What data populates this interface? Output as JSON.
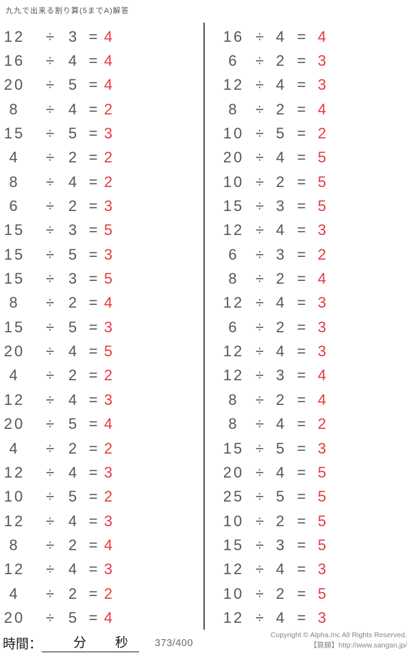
{
  "title": "九九で出来る割り算(5までA)解答",
  "colors": {
    "answer_red": "#e6393f",
    "problem_gray": "#5a5552",
    "divider_gray": "#544f4b",
    "footer_gray": "#898582"
  },
  "operators": {
    "divide": "÷",
    "equals": "="
  },
  "problems": {
    "left": [
      {
        "dividend": 12,
        "divisor": 3,
        "answer": 4
      },
      {
        "dividend": 16,
        "divisor": 4,
        "answer": 4
      },
      {
        "dividend": 20,
        "divisor": 5,
        "answer": 4
      },
      {
        "dividend": 8,
        "divisor": 4,
        "answer": 2
      },
      {
        "dividend": 15,
        "divisor": 5,
        "answer": 3
      },
      {
        "dividend": 4,
        "divisor": 2,
        "answer": 2
      },
      {
        "dividend": 8,
        "divisor": 4,
        "answer": 2
      },
      {
        "dividend": 6,
        "divisor": 2,
        "answer": 3
      },
      {
        "dividend": 15,
        "divisor": 3,
        "answer": 5
      },
      {
        "dividend": 15,
        "divisor": 5,
        "answer": 3
      },
      {
        "dividend": 15,
        "divisor": 3,
        "answer": 5
      },
      {
        "dividend": 8,
        "divisor": 2,
        "answer": 4
      },
      {
        "dividend": 15,
        "divisor": 5,
        "answer": 3
      },
      {
        "dividend": 20,
        "divisor": 4,
        "answer": 5
      },
      {
        "dividend": 4,
        "divisor": 2,
        "answer": 2
      },
      {
        "dividend": 12,
        "divisor": 4,
        "answer": 3
      },
      {
        "dividend": 20,
        "divisor": 5,
        "answer": 4
      },
      {
        "dividend": 4,
        "divisor": 2,
        "answer": 2
      },
      {
        "dividend": 12,
        "divisor": 4,
        "answer": 3
      },
      {
        "dividend": 10,
        "divisor": 5,
        "answer": 2
      },
      {
        "dividend": 12,
        "divisor": 4,
        "answer": 3
      },
      {
        "dividend": 8,
        "divisor": 2,
        "answer": 4
      },
      {
        "dividend": 12,
        "divisor": 4,
        "answer": 3
      },
      {
        "dividend": 4,
        "divisor": 2,
        "answer": 2
      },
      {
        "dividend": 20,
        "divisor": 5,
        "answer": 4
      }
    ],
    "right": [
      {
        "dividend": 16,
        "divisor": 4,
        "answer": 4
      },
      {
        "dividend": 6,
        "divisor": 2,
        "answer": 3
      },
      {
        "dividend": 12,
        "divisor": 4,
        "answer": 3
      },
      {
        "dividend": 8,
        "divisor": 2,
        "answer": 4
      },
      {
        "dividend": 10,
        "divisor": 5,
        "answer": 2
      },
      {
        "dividend": 20,
        "divisor": 4,
        "answer": 5
      },
      {
        "dividend": 10,
        "divisor": 2,
        "answer": 5
      },
      {
        "dividend": 15,
        "divisor": 3,
        "answer": 5
      },
      {
        "dividend": 12,
        "divisor": 4,
        "answer": 3
      },
      {
        "dividend": 6,
        "divisor": 3,
        "answer": 2
      },
      {
        "dividend": 8,
        "divisor": 2,
        "answer": 4
      },
      {
        "dividend": 12,
        "divisor": 4,
        "answer": 3
      },
      {
        "dividend": 6,
        "divisor": 2,
        "answer": 3
      },
      {
        "dividend": 12,
        "divisor": 4,
        "answer": 3
      },
      {
        "dividend": 12,
        "divisor": 3,
        "answer": 4
      },
      {
        "dividend": 8,
        "divisor": 2,
        "answer": 4
      },
      {
        "dividend": 8,
        "divisor": 4,
        "answer": 2
      },
      {
        "dividend": 15,
        "divisor": 5,
        "answer": 3
      },
      {
        "dividend": 20,
        "divisor": 4,
        "answer": 5
      },
      {
        "dividend": 25,
        "divisor": 5,
        "answer": 5
      },
      {
        "dividend": 10,
        "divisor": 2,
        "answer": 5
      },
      {
        "dividend": 15,
        "divisor": 3,
        "answer": 5
      },
      {
        "dividend": 12,
        "divisor": 4,
        "answer": 3
      },
      {
        "dividend": 10,
        "divisor": 2,
        "answer": 5
      },
      {
        "dividend": 12,
        "divisor": 4,
        "answer": 3
      }
    ]
  },
  "footer": {
    "time_label": "時間：",
    "minutes_label": "分",
    "seconds_label": "秒",
    "score": "373/400",
    "copyright_line1": "Copyright © Alpha.Inc All Rights Reserved.",
    "copyright_line2": "【算願】http://www.sangan.jp/"
  }
}
